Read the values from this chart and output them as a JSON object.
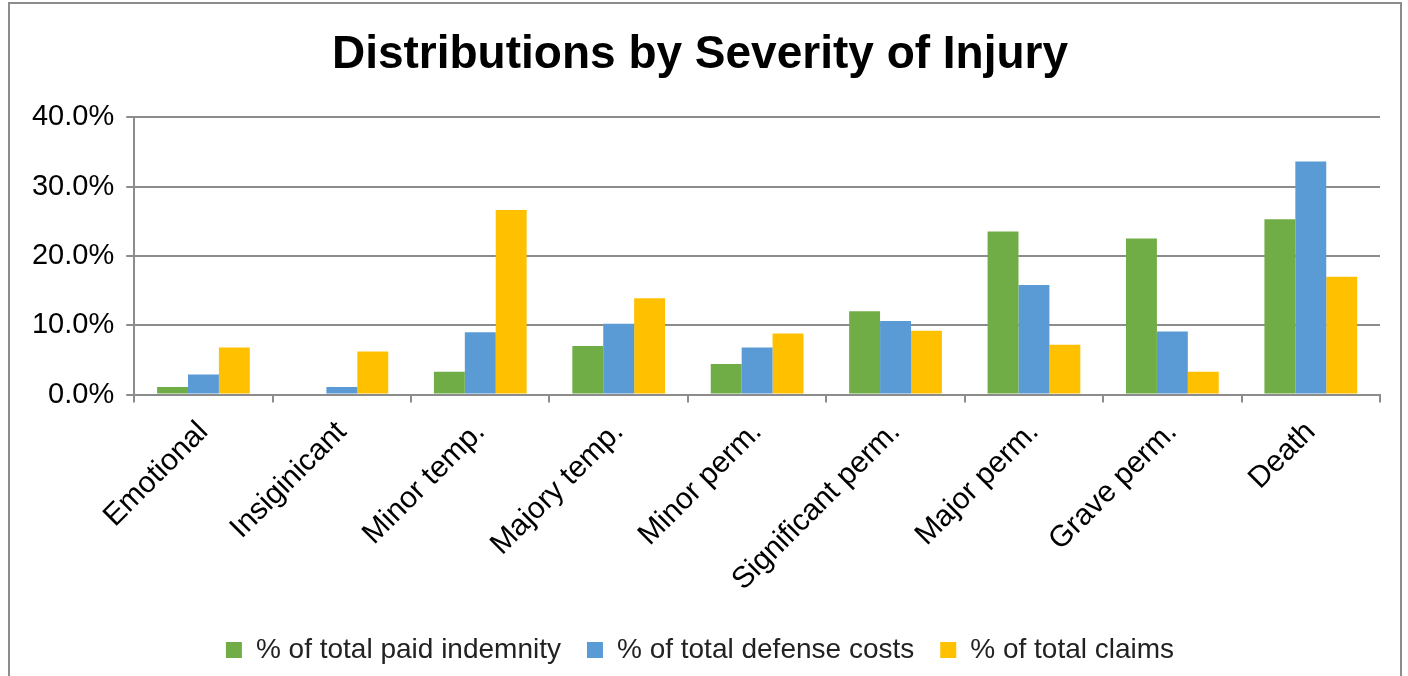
{
  "chart_data": {
    "type": "bar",
    "title": "Distributions by Severity of Injury",
    "categories": [
      "Emotional",
      "Insiginicant",
      "Minor temp.",
      "Majory temp.",
      "Minor perm.",
      "Significant perm.",
      "Major perm.",
      "Grave perm.",
      "Death"
    ],
    "series": [
      {
        "name": "% of total paid indemnity",
        "color": "#70ad47",
        "values": [
          1.1,
          0,
          3.3,
          7.0,
          4.4,
          12.0,
          23.5,
          22.5,
          25.3
        ]
      },
      {
        "name": "% of total defense costs",
        "color": "#5b9bd5",
        "values": [
          2.9,
          1.1,
          9.0,
          10.2,
          6.8,
          10.6,
          15.8,
          9.1,
          33.6
        ]
      },
      {
        "name": "% of total claims",
        "color": "#ffc000",
        "values": [
          6.8,
          6.2,
          26.6,
          13.9,
          8.8,
          9.2,
          7.2,
          3.3,
          17.0
        ]
      }
    ],
    "ylim": [
      0,
      40
    ],
    "yticks": [
      {
        "value": 0,
        "label": "0.0%"
      },
      {
        "value": 10,
        "label": "10.0%"
      },
      {
        "value": 20,
        "label": "20.0%"
      },
      {
        "value": 30,
        "label": "30.0%"
      },
      {
        "value": 40,
        "label": "40.0%"
      }
    ],
    "grid": "y",
    "legend": "bottom"
  }
}
